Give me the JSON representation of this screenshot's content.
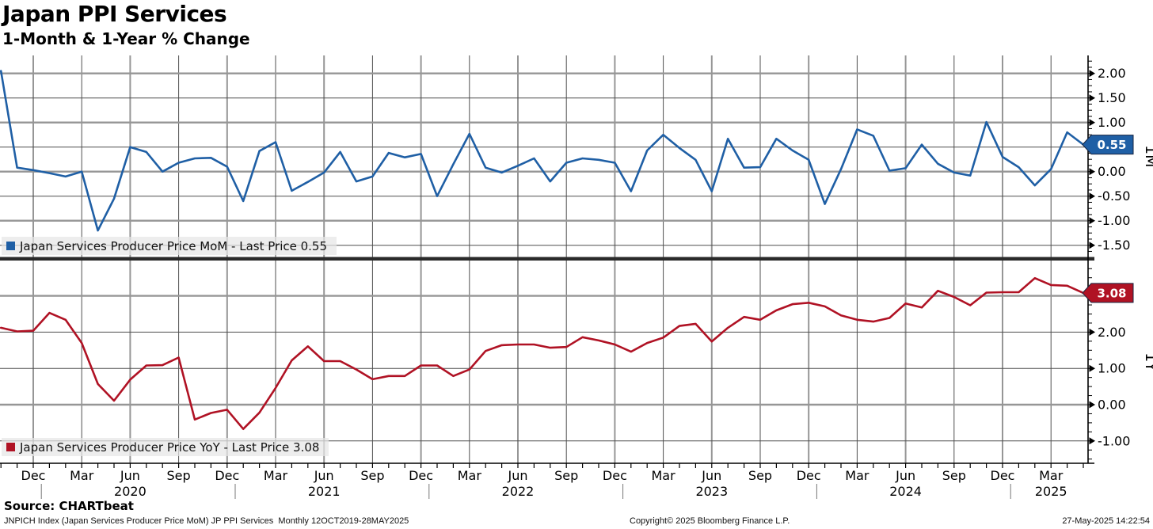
{
  "header": {
    "title": "Japan PPI Services",
    "subtitle": "1-Month & 1-Year % Change"
  },
  "colors": {
    "mom_line": "#1f5fa5",
    "yoy_line": "#b01224",
    "grid_thin": "#4f4f4f",
    "grid_thick": "#969696",
    "axis": "#000000",
    "legend_bg": "#e6e6e6",
    "marker_text": "#ffffff"
  },
  "top_pane": {
    "axis_title": "1M",
    "legend_label": "Japan Services Producer Price MoM - Last Price 0.55",
    "last_price_label": "0.55",
    "ticks": [
      {
        "v": 2.0,
        "label": "2.00"
      },
      {
        "v": 1.5,
        "label": "1.50"
      },
      {
        "v": 1.0,
        "label": "1.00"
      },
      {
        "v": 0.0,
        "label": "0.00"
      },
      {
        "v": -0.5,
        "label": "-0.50"
      },
      {
        "v": -1.0,
        "label": "-1.00"
      },
      {
        "v": -1.5,
        "label": "-1.50"
      }
    ]
  },
  "bottom_pane": {
    "axis_title": "1Y",
    "legend_label": "Japan Services Producer Price YoY - Last Price 3.08",
    "last_price_label": "3.08",
    "ticks": [
      {
        "v": 2.0,
        "label": "2.00"
      },
      {
        "v": 1.0,
        "label": "1.00"
      },
      {
        "v": 0.0,
        "label": "0.00"
      },
      {
        "v": -1.0,
        "label": "-1.00"
      }
    ]
  },
  "x_axis": {
    "quarter_months": [
      "Mar",
      "Jun",
      "Sep",
      "Dec"
    ],
    "year_labels": [
      {
        "label": "2020",
        "m": 8
      },
      {
        "label": "2021",
        "m": 20
      },
      {
        "label": "2022",
        "m": 32
      },
      {
        "label": "2023",
        "m": 44
      },
      {
        "label": "2024",
        "m": 56
      },
      {
        "label": "2025",
        "m": 65
      }
    ]
  },
  "footer": {
    "source": "Source: CHARTbeat",
    "index_info": "JNPICH Index (Japan Services Producer Price MoM) JP PPI Services  Monthly 12OCT2019-28MAY2025",
    "copyright": "Copyright© 2025 Bloomberg Finance L.P.",
    "timestamp": "27-May-2025 14:22:54"
  },
  "chart_data": {
    "type": "line",
    "title": "Japan PPI Services",
    "subtitle": "1-Month & 1-Year % Change",
    "legend_position": "bottom-left of each pane",
    "grid": true,
    "x": [
      "Oct 2019",
      "Nov 2019",
      "Dec 2019",
      "Jan 2020",
      "Feb 2020",
      "Mar 2020",
      "Apr 2020",
      "May 2020",
      "Jun 2020",
      "Jul 2020",
      "Aug 2020",
      "Sep 2020",
      "Oct 2020",
      "Nov 2020",
      "Dec 2020",
      "Jan 2021",
      "Feb 2021",
      "Mar 2021",
      "Apr 2021",
      "May 2021",
      "Jun 2021",
      "Jul 2021",
      "Aug 2021",
      "Sep 2021",
      "Oct 2021",
      "Nov 2021",
      "Dec 2021",
      "Jan 2022",
      "Feb 2022",
      "Mar 2022",
      "Apr 2022",
      "May 2022",
      "Jun 2022",
      "Jul 2022",
      "Aug 2022",
      "Sep 2022",
      "Oct 2022",
      "Nov 2022",
      "Dec 2022",
      "Jan 2023",
      "Feb 2023",
      "Mar 2023",
      "Apr 2023",
      "May 2023",
      "Jun 2023",
      "Jul 2023",
      "Aug 2023",
      "Sep 2023",
      "Oct 2023",
      "Nov 2023",
      "Dec 2023",
      "Jan 2024",
      "Feb 2024",
      "Mar 2024",
      "Apr 2024",
      "May 2024",
      "Jun 2024",
      "Jul 2024",
      "Aug 2024",
      "Sep 2024",
      "Oct 2024",
      "Nov 2024",
      "Dec 2024",
      "Jan 2025",
      "Feb 2025",
      "Mar 2025",
      "Apr 2025",
      "May 2025"
    ],
    "series": [
      {
        "name": "Japan Services Producer Price MoM",
        "pane": "top",
        "unit": "% 1-month change",
        "color": "#1f5fa5",
        "last_price": 0.55,
        "ylim": [
          -1.76,
          2.37
        ],
        "values": [
          2.05,
          0.08,
          0.03,
          -0.03,
          -0.1,
          0.0,
          -1.2,
          -0.55,
          0.5,
          0.4,
          0.0,
          0.18,
          0.27,
          0.28,
          0.1,
          -0.6,
          0.42,
          0.6,
          -0.39,
          -0.21,
          -0.02,
          0.4,
          -0.2,
          -0.1,
          0.38,
          0.29,
          0.36,
          -0.5,
          0.15,
          0.77,
          0.08,
          -0.02,
          0.12,
          0.27,
          -0.2,
          0.18,
          0.27,
          0.24,
          0.18,
          -0.4,
          0.43,
          0.75,
          0.48,
          0.24,
          -0.4,
          0.67,
          0.08,
          0.09,
          0.67,
          0.43,
          0.24,
          -0.66,
          0.05,
          0.86,
          0.73,
          0.02,
          0.07,
          0.55,
          0.16,
          -0.02,
          -0.08,
          1.01,
          0.3,
          0.09,
          -0.28,
          0.05,
          0.8,
          0.55
        ]
      },
      {
        "name": "Japan Services Producer Price YoY",
        "pane": "bottom",
        "unit": "% 1-year change",
        "color": "#b01224",
        "last_price": 3.08,
        "ylim": [
          -1.62,
          3.95
        ],
        "values": [
          2.12,
          2.02,
          2.04,
          2.53,
          2.34,
          1.7,
          0.57,
          0.11,
          0.69,
          1.08,
          1.09,
          1.3,
          -0.41,
          -0.23,
          -0.14,
          -0.67,
          -0.22,
          0.46,
          1.22,
          1.61,
          1.2,
          1.2,
          0.97,
          0.7,
          0.79,
          0.79,
          1.08,
          1.08,
          0.79,
          0.97,
          1.48,
          1.64,
          1.66,
          1.66,
          1.57,
          1.59,
          1.86,
          1.77,
          1.66,
          1.46,
          1.7,
          1.85,
          2.17,
          2.23,
          1.74,
          2.12,
          2.42,
          2.34,
          2.6,
          2.77,
          2.81,
          2.71,
          2.46,
          2.34,
          2.29,
          2.39,
          2.79,
          2.68,
          3.14,
          2.97,
          2.74,
          3.09,
          3.1,
          3.1,
          3.49,
          3.3,
          3.28,
          3.08
        ]
      }
    ]
  }
}
